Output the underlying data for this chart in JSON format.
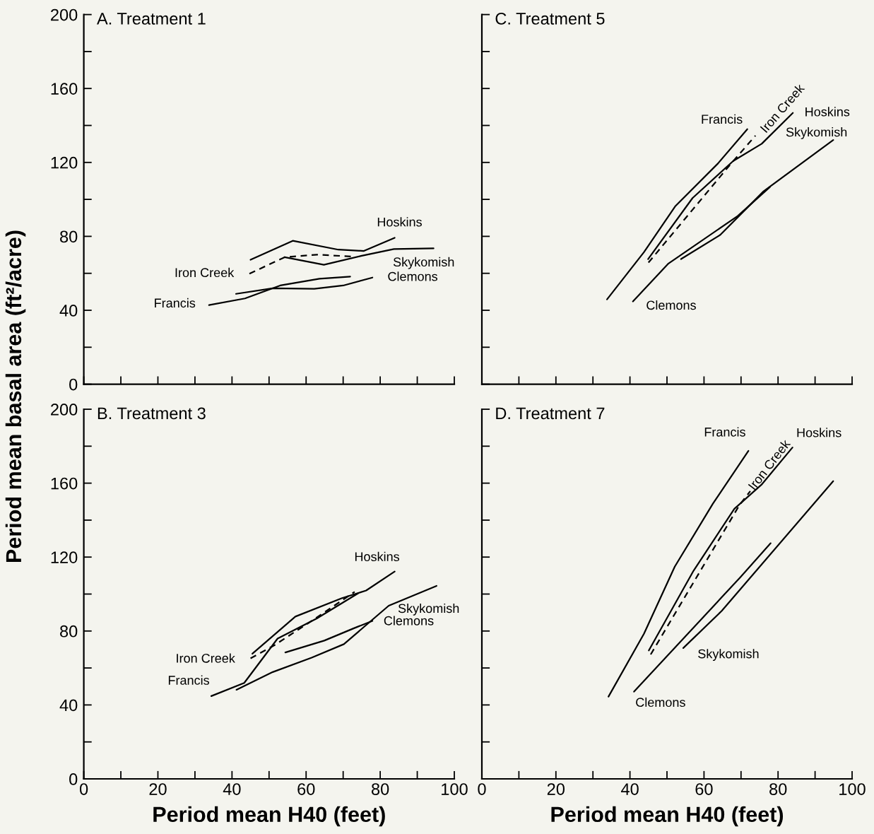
{
  "chart_data": [
    {
      "type": "line",
      "title": "A. Treatment 1",
      "ylabel": "Period mean basal area (ft²/acre)",
      "xlim": [
        0,
        100
      ],
      "ylim": [
        0,
        200
      ],
      "xticks": [
        0,
        {
          "value": 10,
          "label": null
        },
        20,
        {
          "value": 30,
          "label": null
        },
        40,
        {
          "value": 50,
          "label": null
        },
        60,
        {
          "value": 70,
          "label": null
        },
        80,
        {
          "value": 90,
          "label": null
        },
        100
      ],
      "yticks": [
        0,
        {
          "value": 20,
          "label": null
        },
        40,
        {
          "value": 60,
          "label": null
        },
        80,
        {
          "value": 100,
          "label": null
        },
        120,
        {
          "value": 140,
          "label": null
        },
        160,
        {
          "value": 180,
          "label": null
        },
        200
      ],
      "tick_labels": "y",
      "grid": false,
      "legend": false,
      "series": [
        {
          "name": "Hoskins",
          "color": "#000000",
          "x": [
            45.0,
            56.4,
            68.7,
            75.6,
            83.9
          ],
          "values": [
            67.3,
            77.6,
            72.8,
            72.1,
            79.2
          ]
        },
        {
          "name": "Skykomish",
          "color": "#000000",
          "x": [
            54.2,
            64.8,
            74.8,
            83.7,
            94.4
          ],
          "values": [
            68.7,
            64.6,
            69.4,
            73.1,
            73.5
          ]
        },
        {
          "name": "Iron Creek",
          "color": "#000000",
          "line_style": "dashed",
          "x": [
            44.7,
            54.2,
            62.9,
            72.4
          ],
          "values": [
            59.8,
            68.7,
            70.1,
            69.1
          ]
        },
        {
          "name": "Clemons",
          "color": "#000000",
          "x": [
            41.1,
            51.0,
            62.2,
            70.0,
            77.9
          ],
          "values": [
            48.9,
            51.9,
            51.6,
            53.4,
            57.7
          ]
        },
        {
          "name": "Francis",
          "color": "#000000",
          "x": [
            33.8,
            43.5,
            53.0,
            63.6,
            71.9
          ],
          "values": [
            42.8,
            46.4,
            53.4,
            57.1,
            58.2
          ]
        }
      ]
    },
    {
      "type": "line",
      "title": "C. Treatment 5",
      "xlim": [
        0,
        100
      ],
      "ylim": [
        0,
        200
      ],
      "xticks": [
        0,
        {
          "value": 10,
          "label": null
        },
        20,
        {
          "value": 30,
          "label": null
        },
        40,
        {
          "value": 50,
          "label": null
        },
        60,
        {
          "value": 70,
          "label": null
        },
        80,
        {
          "value": 90,
          "label": null
        },
        100
      ],
      "yticks": [
        0,
        {
          "value": 20,
          "label": null
        },
        40,
        {
          "value": 60,
          "label": null
        },
        80,
        {
          "value": 100,
          "label": null
        },
        120,
        {
          "value": 140,
          "label": null
        },
        160,
        {
          "value": 180,
          "label": null
        },
        200
      ],
      "tick_labels": false,
      "grid": false,
      "legend": false,
      "series": [
        {
          "name": "Francis",
          "color": "#000000",
          "x": [
            33.8,
            43.8,
            52.2,
            63.8,
            71.7
          ],
          "values": [
            45.9,
            71.5,
            96.2,
            119.5,
            138.0
          ]
        },
        {
          "name": "Iron Creek",
          "color": "#000000",
          "line_style": "dashed",
          "x": [
            45.0,
            66.9,
            73.9
          ],
          "values": [
            65.8,
            118.4,
            134.5
          ]
        },
        {
          "name": "Hoskins",
          "color": "#000000",
          "x": [
            44.9,
            56.9,
            67.9,
            75.6,
            84.0
          ],
          "values": [
            67.7,
            100.7,
            120.8,
            130.1,
            146.8
          ]
        },
        {
          "name": "Skykomish",
          "color": "#000000",
          "x": [
            53.8,
            64.4,
            76.1,
            94.9
          ],
          "values": [
            67.7,
            80.8,
            104.4,
            132.1
          ]
        },
        {
          "name": "Clemons",
          "color": "#000000",
          "x": [
            40.8,
            50.4,
            69.1,
            77.8
          ],
          "values": [
            44.8,
            65.3,
            91.0,
            106.7
          ]
        }
      ]
    },
    {
      "type": "line",
      "title": "B. Treatment 3",
      "xlabel": "Period mean H40 (feet)",
      "xlim": [
        0,
        100
      ],
      "ylim": [
        0,
        200
      ],
      "xticks": [
        0,
        {
          "value": 10,
          "label": null
        },
        20,
        {
          "value": 30,
          "label": null
        },
        40,
        {
          "value": 50,
          "label": null
        },
        60,
        {
          "value": 70,
          "label": null
        },
        80,
        {
          "value": 90,
          "label": null
        },
        100
      ],
      "yticks": [
        0,
        {
          "value": 20,
          "label": null
        },
        40,
        {
          "value": 60,
          "label": null
        },
        80,
        {
          "value": 100,
          "label": null
        },
        120,
        {
          "value": 140,
          "label": null
        },
        160,
        {
          "value": 180,
          "label": null
        },
        200
      ],
      "grid": false,
      "legend": false,
      "series": [
        {
          "name": "Hoskins",
          "color": "#000000",
          "x": [
            45.5,
            57.1,
            69.7,
            76.2,
            83.9
          ],
          "values": [
            67.7,
            87.8,
            97.8,
            101.9,
            112.2
          ]
        },
        {
          "name": "Skykomish",
          "color": "#000000",
          "x": [
            41.2,
            51.0,
            61.5,
            70.2,
            82.3,
            95.2
          ],
          "values": [
            48.2,
            57.8,
            65.6,
            72.9,
            93.7,
            104.4
          ]
        },
        {
          "name": "Clemons",
          "color": "#000000",
          "x": [
            54.4,
            64.9,
            72.8,
            77.9
          ],
          "values": [
            68.4,
            74.8,
            81.4,
            85.5
          ]
        },
        {
          "name": "Iron Creek",
          "color": "#000000",
          "line_style": "dashed",
          "x": [
            45.0,
            51.6,
            62.5,
            73.1
          ],
          "values": [
            65.2,
            72.5,
            86.8,
            101.2
          ]
        },
        {
          "name": "Francis",
          "color": "#000000",
          "x": [
            34.4,
            43.3,
            52.3,
            62.9,
            74.1
          ],
          "values": [
            44.8,
            51.9,
            75.9,
            86.8,
            100.5
          ]
        }
      ]
    },
    {
      "type": "line",
      "title": "D. Treatment 7",
      "xlabel": "Period mean H40 (feet)",
      "xlim": [
        0,
        100
      ],
      "ylim": [
        0,
        200
      ],
      "xticks": [
        0,
        {
          "value": 10,
          "label": null
        },
        20,
        {
          "value": 30,
          "label": null
        },
        40,
        {
          "value": 50,
          "label": null
        },
        60,
        {
          "value": 70,
          "label": null
        },
        80,
        {
          "value": 90,
          "label": null
        },
        100
      ],
      "yticks": [
        0,
        {
          "value": 20,
          "label": null
        },
        40,
        {
          "value": 60,
          "label": null
        },
        80,
        {
          "value": 100,
          "label": null
        },
        120,
        {
          "value": 140,
          "label": null
        },
        160,
        {
          "value": 180,
          "label": null
        },
        200
      ],
      "tick_labels": "x",
      "grid": false,
      "legend": false,
      "series": [
        {
          "name": "Francis",
          "color": "#000000",
          "x": [
            34.2,
            43.8,
            52.1,
            62.4,
            72.0
          ],
          "values": [
            44.5,
            78.6,
            114.8,
            148.9,
            177.5
          ]
        },
        {
          "name": "Iron Creek",
          "color": "#000000",
          "line_style": "dashed",
          "x": [
            45.6,
            69.6,
            72.5
          ],
          "values": [
            67.3,
            148.2,
            155.7
          ]
        },
        {
          "name": "Hoskins",
          "color": "#000000",
          "x": [
            45.1,
            57.2,
            68.2,
            75.5,
            83.9
          ],
          "values": [
            69.5,
            112.7,
            146.1,
            159.1,
            179.3
          ]
        },
        {
          "name": "Skykomish",
          "color": "#000000",
          "x": [
            54.4,
            64.8,
            94.9
          ],
          "values": [
            70.8,
            90.9,
            161.1
          ]
        },
        {
          "name": "Clemons",
          "color": "#000000",
          "x": [
            41.1,
            69.9,
            78.0
          ],
          "values": [
            47.2,
            109.3,
            127.5
          ]
        }
      ]
    }
  ]
}
